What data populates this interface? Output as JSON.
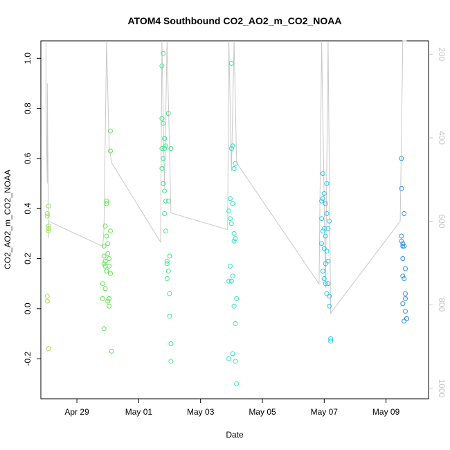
{
  "chart_data": {
    "type": "scatter",
    "title": "ATOM4 Southbound CO2_AO2_m_CO2_NOAA",
    "xlabel": "Date",
    "ylabel": "CO2_AO2_m_CO2_NOAA",
    "xlim": [
      "2016-04-27T20:00",
      "2016-05-10T09:00"
    ],
    "ylim": [
      -0.36,
      1.07
    ],
    "y2lim_reversed": [
      168,
      1025
    ],
    "x_ticks": [
      {
        "label": "Apr 29",
        "date": "2016-04-29"
      },
      {
        "label": "May 01",
        "date": "2016-05-01"
      },
      {
        "label": "May 03",
        "date": "2016-05-03"
      },
      {
        "label": "May 05",
        "date": "2016-05-05"
      },
      {
        "label": "May 07",
        "date": "2016-05-07"
      },
      {
        "label": "May 09",
        "date": "2016-05-09"
      }
    ],
    "y_ticks": [
      "-0.2",
      "0.0",
      "0.2",
      "0.4",
      "0.6",
      "0.8",
      "1.0"
    ],
    "y2_ticks": [
      "200",
      "400",
      "600",
      "800",
      "1000"
    ],
    "grid": false,
    "point_colors": [
      "#9be24c",
      "#5ce44c",
      "#3fe88c",
      "#25e8c4",
      "#22c8ea",
      "#2a92e8"
    ],
    "line_color": "#c8c8c8",
    "series": [
      {
        "color_index": 0,
        "x": [
          "2016-04-28T01:00",
          "2016-04-28T01:00",
          "2016-04-28T01:00",
          "2016-04-28T01:00",
          "2016-04-28T02:00",
          "2016-04-28T02:00",
          "2016-04-28T02:00",
          "2016-04-28T02:00",
          "2016-04-28T02:00"
        ],
        "y": [
          0.38,
          0.37,
          0.05,
          0.03,
          0.41,
          0.33,
          0.31,
          -0.16,
          0.32
        ]
      },
      {
        "color_index": 1,
        "x": [
          "2016-04-29T20:00",
          "2016-04-29T20:00",
          "2016-04-29T21:00",
          "2016-04-29T21:00",
          "2016-04-29T21:00",
          "2016-04-29T21:00",
          "2016-04-29T22:00",
          "2016-04-29T22:00",
          "2016-04-29T22:00",
          "2016-04-29T22:00",
          "2016-04-29T23:00",
          "2016-04-29T23:00",
          "2016-04-29T23:00",
          "2016-04-29T23:00",
          "2016-04-30T00:00",
          "2016-04-30T00:00",
          "2016-04-30T00:00",
          "2016-04-30T01:00",
          "2016-04-30T01:00",
          "2016-04-30T01:00",
          "2016-04-30T01:00",
          "2016-04-30T02:00",
          "2016-04-30T02:00",
          "2016-04-30T02:00",
          "2016-04-30T02:00",
          "2016-04-30T03:00"
        ],
        "y": [
          0.1,
          0.04,
          0.25,
          0.21,
          0.18,
          -0.08,
          0.33,
          0.19,
          0.17,
          0.08,
          0.43,
          0.42,
          0.29,
          0.15,
          0.26,
          0.22,
          0.03,
          0.2,
          0.17,
          0.04,
          0.01,
          0.71,
          0.63,
          0.31,
          0.14,
          -0.17
        ]
      },
      {
        "color_index": 2,
        "x": [
          "2016-05-01T18:00",
          "2016-05-01T18:00",
          "2016-05-01T18:00",
          "2016-05-01T18:00",
          "2016-05-01T19:00",
          "2016-05-01T19:00",
          "2016-05-01T19:00",
          "2016-05-01T19:00",
          "2016-05-01T20:00",
          "2016-05-01T20:00",
          "2016-05-01T20:00",
          "2016-05-01T20:00",
          "2016-05-01T21:00",
          "2016-05-01T21:00",
          "2016-05-01T21:00",
          "2016-05-01T22:00",
          "2016-05-01T22:00",
          "2016-05-01T22:00",
          "2016-05-01T23:00",
          "2016-05-01T23:00",
          "2016-05-01T23:00",
          "2016-05-02T00:00",
          "2016-05-02T00:00",
          "2016-05-02T00:00",
          "2016-05-02T01:00",
          "2016-05-02T01:00",
          "2016-05-02T01:00"
        ],
        "y": [
          0.97,
          0.76,
          0.64,
          0.56,
          1.02,
          0.74,
          0.6,
          0.5,
          0.68,
          0.64,
          0.47,
          0.38,
          0.65,
          0.43,
          0.31,
          0.19,
          0.18,
          0.12,
          0.78,
          0.43,
          0.15,
          0.21,
          0.06,
          -0.03,
          0.64,
          -0.14,
          -0.21
        ]
      },
      {
        "color_index": 3,
        "x": [
          "2016-05-03T22:00",
          "2016-05-03T22:00",
          "2016-05-03T22:00",
          "2016-05-03T23:00",
          "2016-05-03T23:00",
          "2016-05-03T23:00",
          "2016-05-04T00:00",
          "2016-05-04T00:00",
          "2016-05-04T00:00",
          "2016-05-04T00:00",
          "2016-05-04T01:00",
          "2016-05-04T01:00",
          "2016-05-04T01:00",
          "2016-05-04T01:00",
          "2016-05-04T02:00",
          "2016-05-04T02:00",
          "2016-05-04T02:00",
          "2016-05-04T02:00",
          "2016-05-04T03:00",
          "2016-05-04T03:00",
          "2016-05-04T03:00",
          "2016-05-04T03:00",
          "2016-05-04T04:00",
          "2016-05-04T04:00"
        ],
        "y": [
          0.39,
          0.11,
          -0.2,
          0.44,
          0.36,
          0.17,
          0.98,
          0.64,
          0.34,
          0.11,
          0.65,
          0.42,
          0.13,
          -0.18,
          0.56,
          0.3,
          0.27,
          0.01,
          0.58,
          0.28,
          -0.06,
          -0.21,
          0.04,
          -0.3
        ]
      },
      {
        "color_index": 4,
        "x": [
          "2016-05-06T22:00",
          "2016-05-06T22:00",
          "2016-05-06T22:00",
          "2016-05-06T23:00",
          "2016-05-06T23:00",
          "2016-05-06T23:00",
          "2016-05-06T23:00",
          "2016-05-07T00:00",
          "2016-05-07T00:00",
          "2016-05-07T00:00",
          "2016-05-07T00:00",
          "2016-05-07T01:00",
          "2016-05-07T01:00",
          "2016-05-07T01:00",
          "2016-05-07T01:00",
          "2016-05-07T02:00",
          "2016-05-07T02:00",
          "2016-05-07T02:00",
          "2016-05-07T02:00",
          "2016-05-07T03:00",
          "2016-05-07T03:00",
          "2016-05-07T03:00",
          "2016-05-07T04:00",
          "2016-05-07T04:00",
          "2016-05-07T04:00",
          "2016-05-07T05:00",
          "2016-05-07T05:00"
        ],
        "y": [
          0.43,
          0.36,
          0.26,
          0.54,
          0.44,
          0.31,
          0.15,
          0.46,
          0.32,
          0.24,
          0.12,
          0.42,
          0.29,
          0.18,
          0.1,
          0.5,
          0.38,
          0.23,
          0.06,
          0.32,
          0.19,
          0.1,
          0.35,
          0.05,
          0.01,
          -0.12,
          -0.13
        ]
      },
      {
        "color_index": 5,
        "x": [
          "2016-05-09T12:00",
          "2016-05-09T12:00",
          "2016-05-09T12:00",
          "2016-05-09T12:00",
          "2016-05-09T13:00",
          "2016-05-09T13:00",
          "2016-05-09T13:00",
          "2016-05-09T13:00",
          "2016-05-09T13:00",
          "2016-05-09T14:00",
          "2016-05-09T14:00",
          "2016-05-09T14:00",
          "2016-05-09T14:00",
          "2016-05-09T15:00",
          "2016-05-09T15:00",
          "2016-05-09T15:00",
          "2016-05-09T15:00",
          "2016-05-09T16:00",
          "2016-05-09T16:00"
        ],
        "y": [
          0.6,
          0.48,
          0.29,
          0.27,
          0.26,
          0.25,
          0.2,
          0.13,
          0.02,
          0.38,
          0.25,
          0.12,
          -0.05,
          0.16,
          0.06,
          0.04,
          -0.01,
          -0.04,
          -0.04
        ]
      }
    ],
    "right_axis_line": {
      "x": [
        "2016-04-28T00:00",
        "2016-04-28T00:00",
        "2016-04-28T01:00",
        "2016-04-28T01:00",
        "2016-04-28T02:00",
        "2016-04-28T02:00",
        "2016-04-29T20:00",
        "2016-04-29T21:00",
        "2016-04-29T23:00",
        "2016-04-30T01:00",
        "2016-04-30T03:00",
        "2016-05-01T17:00",
        "2016-05-01T18:00",
        "2016-05-01T20:00",
        "2016-05-01T22:00",
        "2016-05-02T01:00",
        "2016-05-03T21:00",
        "2016-05-03T22:00",
        "2016-05-04T00:00",
        "2016-05-04T02:00",
        "2016-05-04T04:00",
        "2016-05-06T20:00",
        "2016-05-06T22:00",
        "2016-05-07T01:00",
        "2016-05-07T03:00",
        "2016-05-07T05:00",
        "2016-05-09T11:00",
        "2016-05-09T13:00",
        "2016-05-09T16:00"
      ],
      "y2": [
        168,
        330,
        510,
        270,
        640,
        600,
        660,
        620,
        168,
        420,
        460,
        650,
        168,
        520,
        168,
        580,
        620,
        168,
        480,
        168,
        460,
        750,
        168,
        760,
        168,
        820,
        600,
        168,
        168
      ]
    }
  }
}
